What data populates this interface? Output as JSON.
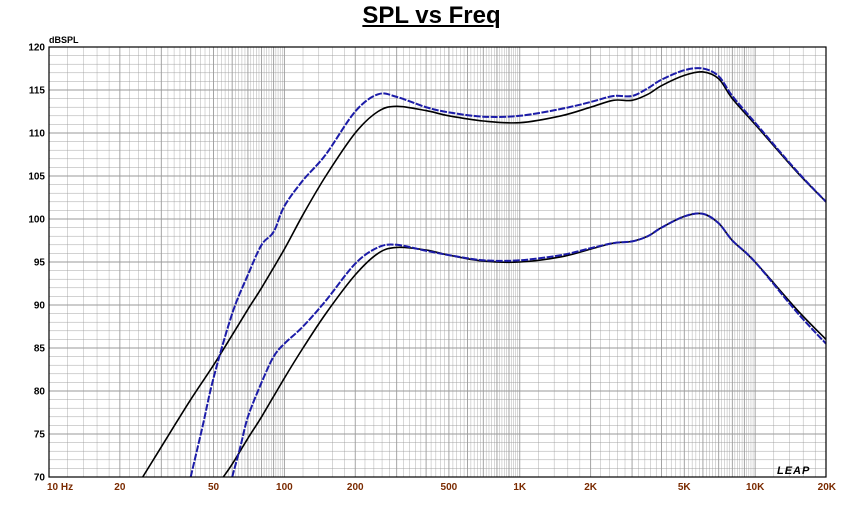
{
  "chart_data": {
    "type": "line",
    "title": "SPL vs Freq",
    "ylabel": "dBSPL",
    "xlabel": "",
    "x_scale": "log",
    "xlim": [
      10,
      20000
    ],
    "ylim": [
      70,
      120
    ],
    "y_ticks": [
      70,
      75,
      80,
      85,
      90,
      95,
      100,
      105,
      110,
      115,
      120
    ],
    "y_tick_labels": [
      "70",
      "75",
      "80",
      "85",
      "90",
      "95",
      "100",
      "105",
      "110",
      "115",
      "120"
    ],
    "x_ticks": [
      10,
      20,
      50,
      100,
      200,
      500,
      1000,
      2000,
      5000,
      10000,
      20000
    ],
    "x_tick_labels": [
      "10  Hz",
      "20",
      "50",
      "100",
      "200",
      "500",
      "1K",
      "2K",
      "5K",
      "10K",
      "20K"
    ],
    "grid": true,
    "logo": "LEAP",
    "colors": {
      "black_series": "#000000",
      "blue_series": "#1c1ca8",
      "grid": "#9a9a9a",
      "x_tick_label": "#7a2a00"
    },
    "series": [
      {
        "color": "#000000",
        "x": [
          25,
          30,
          40,
          50,
          60,
          70,
          80,
          100,
          120,
          150,
          200,
          250,
          300,
          400,
          500,
          700,
          1000,
          1500,
          2000,
          2500,
          3000,
          3500,
          4000,
          5000,
          6000,
          7000,
          8000,
          10000,
          15000,
          20000
        ],
        "y": [
          70,
          73.5,
          79,
          83,
          86.5,
          89.5,
          92,
          96.5,
          100.5,
          105,
          110,
          112.5,
          113.1,
          112.6,
          112,
          111.4,
          111.2,
          112,
          113,
          113.8,
          113.8,
          114.5,
          115.5,
          116.7,
          117.1,
          116.3,
          114,
          111,
          105.5,
          102
        ]
      },
      {
        "color": "#1c1ca8",
        "x": [
          40,
          45,
          50,
          60,
          70,
          80,
          90,
          100,
          120,
          150,
          200,
          250,
          300,
          400,
          500,
          700,
          1000,
          1500,
          2000,
          2500,
          3000,
          3500,
          4000,
          5000,
          6000,
          7000,
          8000,
          10000,
          15000,
          20000
        ],
        "y": [
          70,
          76,
          81.5,
          89,
          93.5,
          97,
          98.5,
          101.5,
          104.5,
          107.5,
          112.5,
          114.5,
          114.2,
          113,
          112.4,
          111.9,
          112,
          112.8,
          113.6,
          114.3,
          114.3,
          115.2,
          116.2,
          117.3,
          117.5,
          116.6,
          114.3,
          111.2,
          105.6,
          102
        ]
      },
      {
        "color": "#000000",
        "x": [
          55,
          60,
          70,
          80,
          100,
          120,
          150,
          200,
          250,
          300,
          400,
          500,
          700,
          1000,
          1500,
          2000,
          2500,
          3000,
          3500,
          4000,
          5000,
          6000,
          7000,
          8000,
          10000,
          15000,
          20000
        ],
        "y": [
          70,
          71.5,
          74.5,
          77,
          81.5,
          85,
          89,
          93.5,
          96,
          96.7,
          96.4,
          95.8,
          95.1,
          95,
          95.6,
          96.5,
          97.2,
          97.4,
          98,
          99,
          100.3,
          100.6,
          99.5,
          97.5,
          95,
          89.5,
          86
        ]
      },
      {
        "color": "#1c1ca8",
        "x": [
          60,
          65,
          70,
          80,
          90,
          100,
          120,
          150,
          200,
          250,
          300,
          400,
          500,
          700,
          1000,
          1500,
          2000,
          2500,
          3000,
          3500,
          4000,
          5000,
          6000,
          7000,
          8000,
          10000,
          15000,
          20000
        ],
        "y": [
          70,
          73.5,
          77,
          81,
          84,
          85.5,
          87.5,
          90.5,
          94.8,
          96.7,
          97,
          96.3,
          95.8,
          95.2,
          95.2,
          95.8,
          96.6,
          97.2,
          97.4,
          98,
          99,
          100.3,
          100.6,
          99.5,
          97.5,
          95,
          89.2,
          85.5
        ]
      }
    ]
  }
}
